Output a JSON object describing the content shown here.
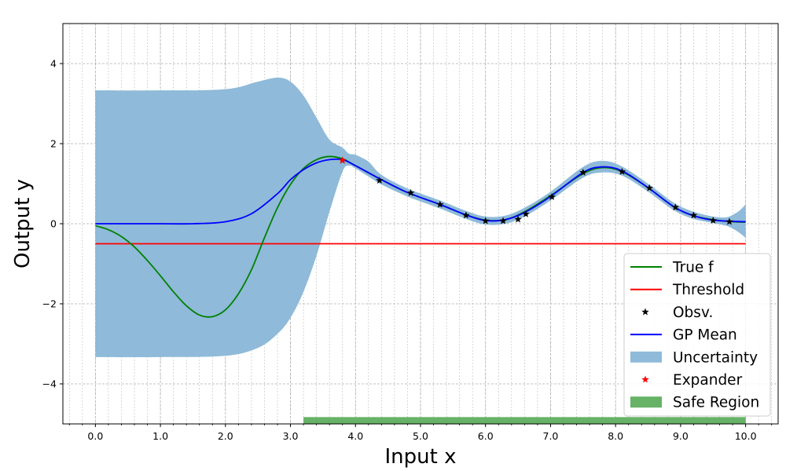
{
  "chart_data": {
    "type": "line",
    "title": "",
    "xlabel": "Input x",
    "ylabel": "Output y",
    "xlim": [
      -0.5,
      10.5
    ],
    "ylim": [
      -5,
      5
    ],
    "x_ticks": [
      0.0,
      1.0,
      2.0,
      3.0,
      4.0,
      5.0,
      6.0,
      7.0,
      8.0,
      9.0,
      10.0
    ],
    "x_tick_labels": [
      "0.0",
      "1.0",
      "2.0",
      "3.0",
      "4.0",
      "5.0",
      "6.0",
      "7.0",
      "8.0",
      "9.0",
      "10.0"
    ],
    "y_ticks": [
      -4,
      -2,
      0,
      2,
      4
    ],
    "y_tick_labels": [
      "−4",
      "−2",
      "0",
      "2",
      "4"
    ],
    "grid": true,
    "minor_grid": true,
    "legend_placement": "lower-right",
    "colors": {
      "true_f": "#008000",
      "threshold": "#ff0000",
      "observations": "#000000",
      "gp_mean": "#0000ff",
      "uncertainty": "#8fbad9",
      "expander": "#ff0000",
      "safe_region": "#66b266"
    },
    "series": [
      {
        "name": "True f",
        "kind": "line",
        "x": [
          0.0,
          0.2,
          0.4,
          0.6,
          0.8,
          1.0,
          1.2,
          1.4,
          1.6,
          1.8,
          2.0,
          2.2,
          2.4,
          2.6,
          2.8,
          3.0,
          3.2,
          3.4,
          3.6,
          3.8,
          4.0,
          4.4,
          4.8,
          5.3,
          5.7,
          6.0,
          6.3,
          6.6,
          7.0,
          7.5,
          7.8,
          8.1,
          8.5,
          8.9,
          9.2,
          9.5,
          9.8,
          10.0
        ],
        "y": [
          -0.05,
          -0.15,
          -0.32,
          -0.58,
          -0.92,
          -1.3,
          -1.7,
          -2.05,
          -2.28,
          -2.32,
          -2.15,
          -1.75,
          -1.15,
          -0.35,
          0.4,
          0.98,
          1.38,
          1.6,
          1.68,
          1.62,
          1.45,
          1.1,
          0.78,
          0.48,
          0.22,
          0.09,
          0.1,
          0.3,
          0.7,
          1.25,
          1.4,
          1.3,
          0.9,
          0.42,
          0.2,
          0.1,
          0.05,
          0.04
        ]
      },
      {
        "name": "Threshold",
        "kind": "line",
        "x": [
          0.0,
          10.0
        ],
        "y": [
          -0.5,
          -0.5
        ]
      },
      {
        "name": "Obsv.",
        "kind": "scatter",
        "x": [
          3.8,
          4.37,
          4.85,
          5.3,
          5.7,
          6.0,
          6.27,
          6.5,
          6.62,
          7.02,
          7.5,
          8.1,
          8.52,
          8.92,
          9.2,
          9.5,
          9.75
        ],
        "y": [
          1.58,
          1.08,
          0.77,
          0.48,
          0.21,
          0.07,
          0.07,
          0.11,
          0.24,
          0.67,
          1.28,
          1.3,
          0.89,
          0.41,
          0.21,
          0.08,
          0.05
        ]
      },
      {
        "name": "GP Mean",
        "kind": "line",
        "x": [
          0.0,
          0.5,
          1.0,
          1.5,
          2.0,
          2.4,
          2.8,
          3.0,
          3.2,
          3.4,
          3.6,
          3.8,
          4.0,
          4.4,
          4.8,
          5.3,
          5.7,
          6.0,
          6.3,
          6.6,
          7.0,
          7.5,
          7.8,
          8.1,
          8.5,
          8.9,
          9.2,
          9.5,
          9.8,
          10.0
        ],
        "y": [
          0.0,
          0.0,
          0.0,
          0.0,
          0.05,
          0.25,
          0.75,
          1.1,
          1.35,
          1.52,
          1.6,
          1.6,
          1.45,
          1.1,
          0.78,
          0.48,
          0.22,
          0.08,
          0.1,
          0.28,
          0.68,
          1.28,
          1.42,
          1.32,
          0.9,
          0.42,
          0.2,
          0.09,
          0.06,
          0.05
        ]
      },
      {
        "name": "Uncertainty",
        "kind": "band",
        "x": [
          0.0,
          1.0,
          2.0,
          2.5,
          2.8,
          3.0,
          3.2,
          3.4,
          3.6,
          3.8,
          3.9,
          4.0,
          4.2,
          4.4,
          4.8,
          5.3,
          5.7,
          6.0,
          6.3,
          6.6,
          7.0,
          7.5,
          7.8,
          8.1,
          8.5,
          8.9,
          9.2,
          9.5,
          9.7,
          9.8,
          9.9,
          10.0
        ],
        "lower": [
          -3.33,
          -3.33,
          -3.3,
          -3.1,
          -2.75,
          -2.35,
          -1.7,
          -0.8,
          0.3,
          1.3,
          1.45,
          1.38,
          1.18,
          0.98,
          0.68,
          0.38,
          0.12,
          -0.02,
          0.0,
          0.18,
          0.58,
          1.15,
          1.28,
          1.2,
          0.8,
          0.33,
          0.12,
          0.02,
          -0.05,
          -0.12,
          -0.22,
          -0.35
        ],
        "upper": [
          3.33,
          3.33,
          3.36,
          3.55,
          3.65,
          3.55,
          3.2,
          2.65,
          2.1,
          1.9,
          1.75,
          1.72,
          1.55,
          1.22,
          0.88,
          0.58,
          0.32,
          0.18,
          0.2,
          0.4,
          0.8,
          1.42,
          1.57,
          1.43,
          1.0,
          0.52,
          0.3,
          0.18,
          0.16,
          0.22,
          0.32,
          0.48
        ]
      },
      {
        "name": "Expander",
        "kind": "scatter",
        "x": [
          3.8
        ],
        "y": [
          1.58
        ]
      },
      {
        "name": "Safe Region",
        "kind": "span",
        "x_start": 3.2,
        "x_end": 10.0
      }
    ],
    "legend": [
      {
        "label": "True f",
        "kind": "line",
        "color": "#008000"
      },
      {
        "label": "Threshold",
        "kind": "line",
        "color": "#ff0000"
      },
      {
        "label": "Obsv.",
        "kind": "star",
        "color": "#000000"
      },
      {
        "label": "GP Mean",
        "kind": "line",
        "color": "#0000ff"
      },
      {
        "label": "Uncertainty",
        "kind": "patch",
        "color": "#8fbad9"
      },
      {
        "label": "Expander",
        "kind": "star",
        "color": "#ff0000"
      },
      {
        "label": "Safe Region",
        "kind": "patch",
        "color": "#66b266"
      }
    ]
  }
}
